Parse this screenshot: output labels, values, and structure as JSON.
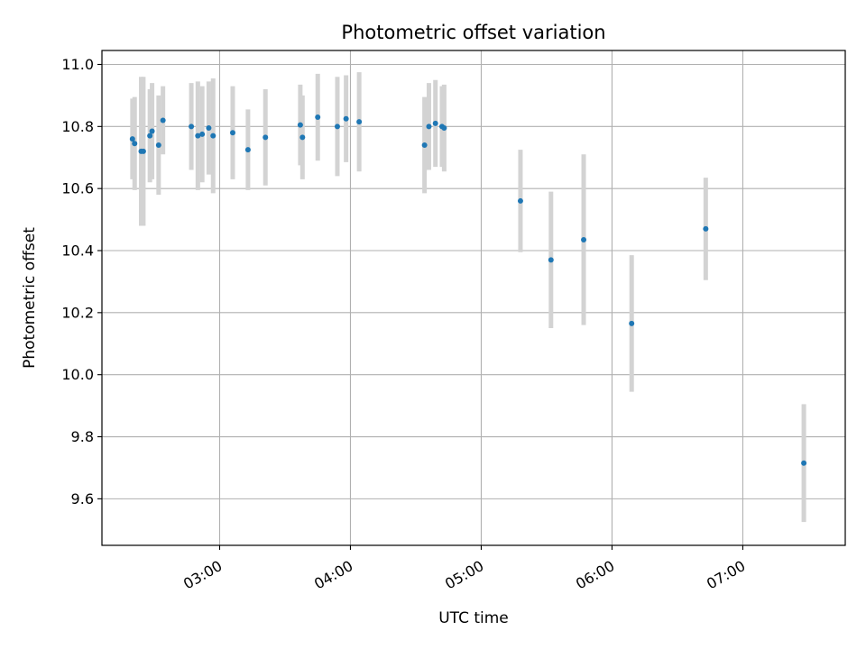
{
  "chart_data": {
    "type": "scatter",
    "title": "Photometric offset variation",
    "xlabel": "UTC time",
    "ylabel": "Photometric offset",
    "x_unit": "UTC time of day (HH:MM)",
    "xlim": [
      "02:06",
      "07:47"
    ],
    "ylim": [
      9.45,
      11.045
    ],
    "x_ticks": [
      "03:00",
      "04:00",
      "05:00",
      "06:00",
      "07:00"
    ],
    "y_ticks": [
      9.6,
      9.8,
      10.0,
      10.2,
      10.4,
      10.6,
      10.8,
      11.0
    ],
    "grid": true,
    "colors": {
      "point": "#1f77b4",
      "errorbar": "#d3d3d3",
      "grid": "#b0b0b0"
    },
    "points": [
      {
        "x": "02:20",
        "y": 10.76,
        "err": 0.13
      },
      {
        "x": "02:21",
        "y": 10.745,
        "err": 0.15
      },
      {
        "x": "02:24",
        "y": 10.72,
        "err": 0.24
      },
      {
        "x": "02:25",
        "y": 10.72,
        "err": 0.24
      },
      {
        "x": "02:28",
        "y": 10.77,
        "err": 0.15
      },
      {
        "x": "02:29",
        "y": 10.785,
        "err": 0.155
      },
      {
        "x": "02:32",
        "y": 10.74,
        "err": 0.16
      },
      {
        "x": "02:34",
        "y": 10.82,
        "err": 0.11
      },
      {
        "x": "02:47",
        "y": 10.8,
        "err": 0.14
      },
      {
        "x": "02:50",
        "y": 10.77,
        "err": 0.175
      },
      {
        "x": "02:52",
        "y": 10.775,
        "err": 0.155
      },
      {
        "x": "02:55",
        "y": 10.795,
        "err": 0.15
      },
      {
        "x": "02:57",
        "y": 10.77,
        "err": 0.185
      },
      {
        "x": "03:06",
        "y": 10.78,
        "err": 0.15
      },
      {
        "x": "03:13",
        "y": 10.725,
        "err": 0.13
      },
      {
        "x": "03:21",
        "y": 10.765,
        "err": 0.155
      },
      {
        "x": "03:37",
        "y": 10.805,
        "err": 0.13
      },
      {
        "x": "03:38",
        "y": 10.765,
        "err": 0.135
      },
      {
        "x": "03:45",
        "y": 10.83,
        "err": 0.14
      },
      {
        "x": "03:54",
        "y": 10.8,
        "err": 0.16
      },
      {
        "x": "03:58",
        "y": 10.825,
        "err": 0.14
      },
      {
        "x": "04:04",
        "y": 10.815,
        "err": 0.16
      },
      {
        "x": "04:34",
        "y": 10.74,
        "err": 0.155
      },
      {
        "x": "04:36",
        "y": 10.8,
        "err": 0.14
      },
      {
        "x": "04:39",
        "y": 10.81,
        "err": 0.14
      },
      {
        "x": "04:42",
        "y": 10.8,
        "err": 0.13
      },
      {
        "x": "04:43",
        "y": 10.795,
        "err": 0.14
      },
      {
        "x": "05:18",
        "y": 10.56,
        "err": 0.165
      },
      {
        "x": "05:32",
        "y": 10.37,
        "err": 0.22
      },
      {
        "x": "05:47",
        "y": 10.435,
        "err": 0.275
      },
      {
        "x": "06:09",
        "y": 10.165,
        "err": 0.22
      },
      {
        "x": "06:43",
        "y": 10.47,
        "err": 0.165
      },
      {
        "x": "07:28",
        "y": 9.715,
        "err": 0.19
      }
    ]
  }
}
